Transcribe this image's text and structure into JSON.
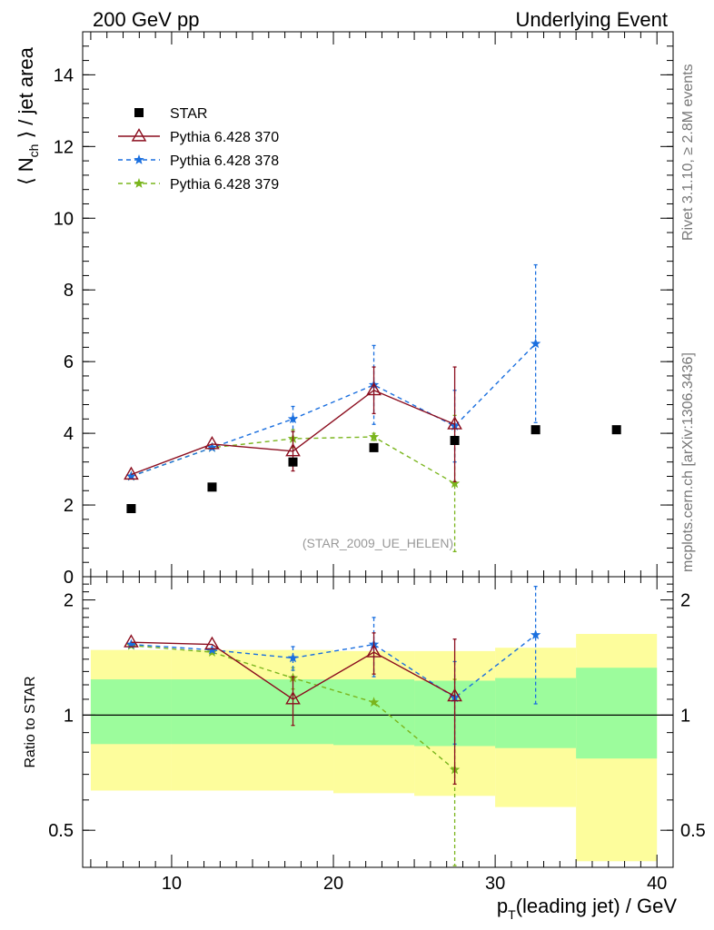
{
  "header": {
    "left": "200 GeV pp",
    "right": "Underlying Event"
  },
  "side_labels": {
    "rivet": "Rivet 3.1.10, ≥ 2.8M events",
    "mcplots": "mcplots.cern.ch [arXiv:1306.3436]"
  },
  "analysis_label": "(STAR_2009_UE_HELEN)",
  "chart_data": [
    {
      "type": "scatter",
      "panel": "main",
      "ylabel": "⟨ N_ch ⟩ / jet area",
      "xlim": [
        4.5,
        41
      ],
      "ylim": [
        0,
        15.2
      ],
      "yticks": [
        0,
        2,
        4,
        6,
        8,
        10,
        12,
        14
      ],
      "legend_position": "top-left",
      "series": [
        {
          "name": "STAR",
          "marker": "square",
          "color": "#000000",
          "x": [
            7.5,
            12.5,
            17.5,
            22.5,
            27.5,
            32.5,
            37.5
          ],
          "y": [
            1.9,
            2.5,
            3.2,
            3.6,
            3.8,
            4.1,
            4.1
          ]
        },
        {
          "name": "Pythia 6.428 370",
          "marker": "open-triangle",
          "line": "solid",
          "color": "#8b0d1e",
          "x": [
            7.5,
            12.5,
            17.5,
            22.5,
            27.5
          ],
          "y": [
            2.85,
            3.7,
            3.5,
            5.2,
            4.25
          ],
          "yerr": [
            0.05,
            0.05,
            0.55,
            0.65,
            1.6
          ]
        },
        {
          "name": "Pythia 6.428 378",
          "marker": "star",
          "line": "dashed",
          "color": "#1a6fdf",
          "x": [
            7.5,
            12.5,
            17.5,
            22.5,
            27.5,
            32.5
          ],
          "y": [
            2.8,
            3.6,
            4.4,
            5.35,
            4.2,
            6.5
          ],
          "yerr": [
            0.05,
            0.05,
            0.35,
            1.1,
            1.0,
            2.2
          ]
        },
        {
          "name": "Pythia 6.428 379",
          "marker": "star",
          "line": "dashed",
          "color": "#7ab51d",
          "x": [
            7.5,
            12.5,
            17.5,
            22.5,
            27.5
          ],
          "y": [
            2.8,
            3.6,
            3.85,
            3.9,
            2.6
          ],
          "yerr": [
            0.05,
            0.05,
            0.25,
            0.1,
            1.9
          ]
        }
      ]
    },
    {
      "type": "scatter",
      "panel": "ratio",
      "xlabel": "p_T(leading jet) / GeV",
      "ylabel": "Ratio to STAR",
      "xlim": [
        4.5,
        41
      ],
      "xticks": [
        10,
        20,
        30,
        40
      ],
      "ylim": [
        0.4,
        2.3
      ],
      "ytick_labels": [
        0.5,
        1,
        2
      ],
      "log_y": true,
      "bands": {
        "bins": [
          [
            5,
            10
          ],
          [
            10,
            15
          ],
          [
            15,
            20
          ],
          [
            20,
            25
          ],
          [
            25,
            30
          ],
          [
            30,
            35
          ],
          [
            35,
            40
          ]
        ],
        "inner_color": "#9cfc9c",
        "outer_color": "#fdfd9c",
        "inner_lo": [
          0.84,
          0.84,
          0.84,
          0.835,
          0.83,
          0.82,
          0.77
        ],
        "inner_hi": [
          1.24,
          1.24,
          1.24,
          1.24,
          1.23,
          1.25,
          1.33
        ],
        "outer_lo": [
          0.635,
          0.635,
          0.635,
          0.625,
          0.615,
          0.575,
          0.415
        ],
        "outer_hi": [
          1.48,
          1.48,
          1.48,
          1.47,
          1.47,
          1.5,
          1.63
        ]
      },
      "series": [
        {
          "name": "Pythia 6.428 370",
          "color": "#8b0d1e",
          "x": [
            7.5,
            12.5,
            17.5,
            22.5,
            27.5
          ],
          "y": [
            1.55,
            1.53,
            1.1,
            1.46,
            1.12
          ],
          "yerr": [
            0.02,
            0.02,
            0.16,
            0.18,
            0.46
          ]
        },
        {
          "name": "Pythia 6.428 378",
          "color": "#1a6fdf",
          "x": [
            7.5,
            12.5,
            17.5,
            22.5,
            27.5,
            32.5
          ],
          "y": [
            1.53,
            1.48,
            1.41,
            1.53,
            1.11,
            1.62
          ],
          "yerr": [
            0.02,
            0.02,
            0.1,
            0.27,
            0.27,
            0.55
          ]
        },
        {
          "name": "Pythia 6.428 379",
          "color": "#7ab51d",
          "x": [
            7.5,
            12.5,
            17.5,
            22.5,
            27.5
          ],
          "y": [
            1.52,
            1.46,
            1.25,
            1.08,
            0.72
          ],
          "yerr": [
            0.02,
            0.02,
            0.08,
            0.03,
            0.52
          ]
        }
      ]
    }
  ]
}
